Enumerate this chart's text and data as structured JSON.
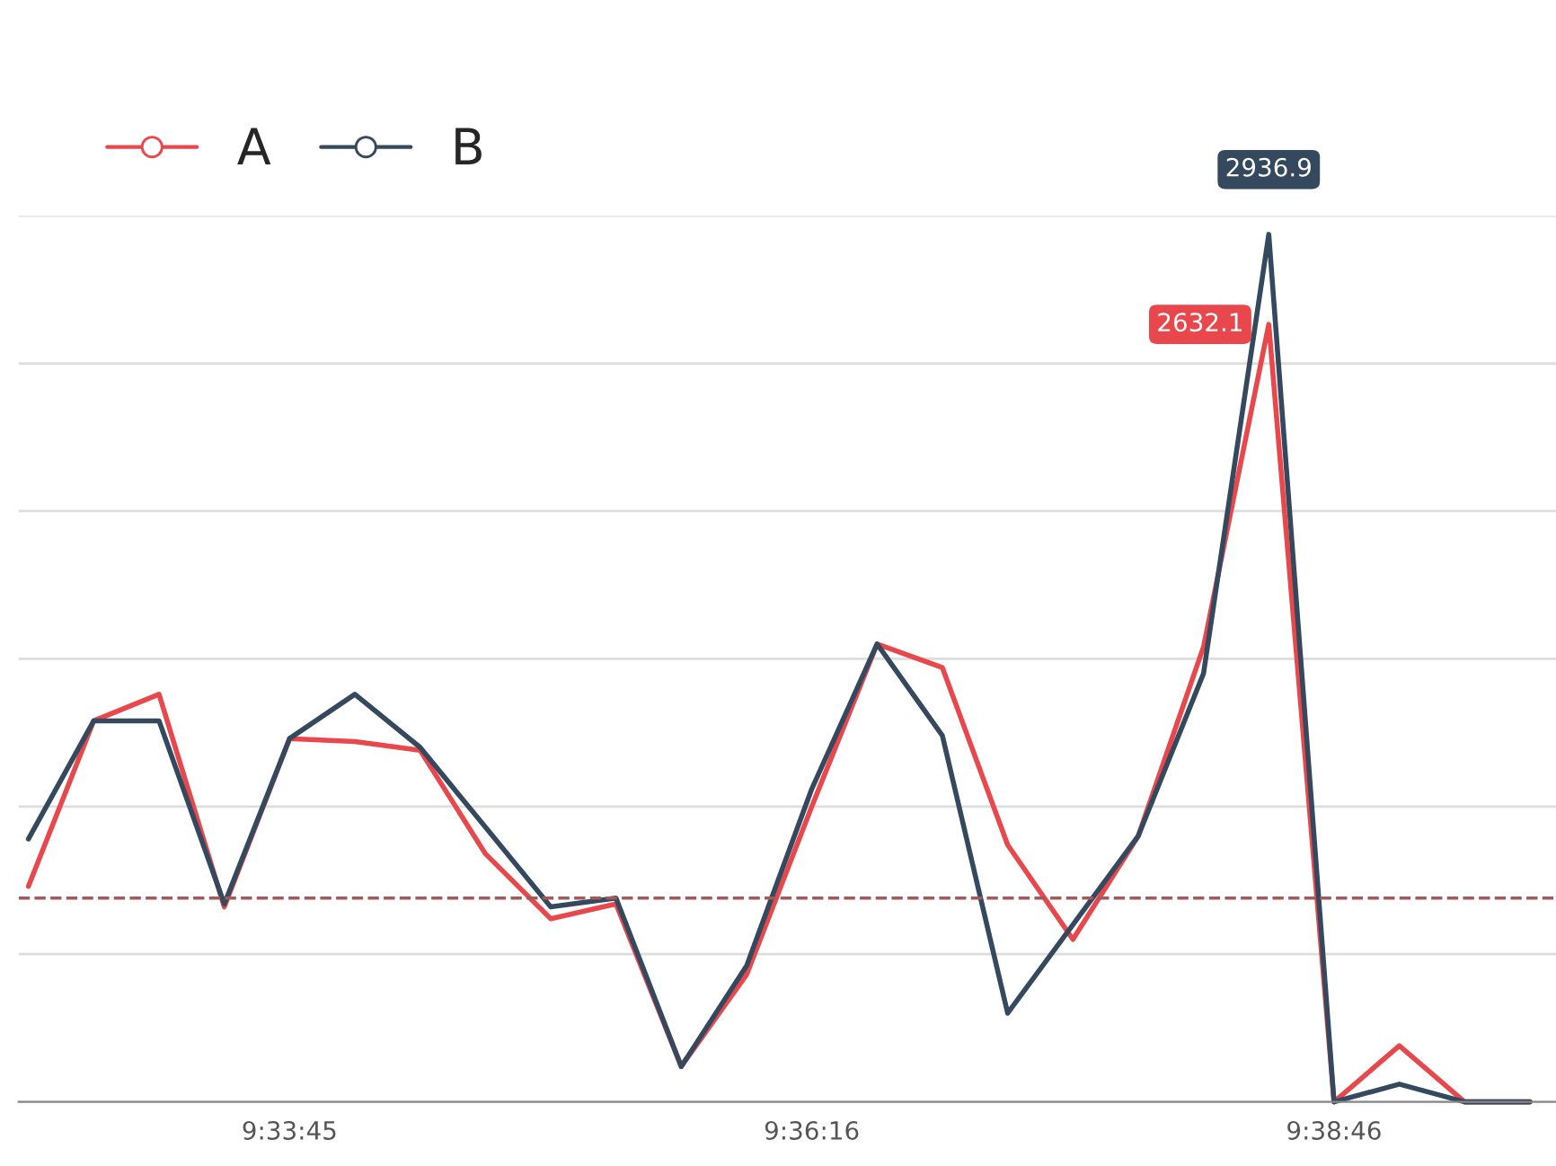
{
  "chart_data": {
    "type": "line",
    "categories": [
      null,
      null,
      null,
      null,
      "9:33:45",
      null,
      null,
      null,
      null,
      null,
      null,
      null,
      "9:36:16",
      null,
      null,
      null,
      null,
      null,
      null,
      null,
      "9:38:46",
      null,
      null,
      null
    ],
    "series": [
      {
        "name": "A",
        "color": "#e8474c",
        "values": [
          730,
          1290,
          1380,
          660,
          1230,
          1220,
          1190,
          840,
          620,
          670,
          120,
          430,
          1000,
          1550,
          1470,
          870,
          550,
          900,
          1540,
          2632.1,
          0,
          190,
          0,
          0
        ],
        "value_labels": [
          null,
          null,
          null,
          null,
          null,
          null,
          null,
          null,
          null,
          null,
          null,
          null,
          null,
          null,
          null,
          null,
          null,
          null,
          null,
          "2632.1",
          null,
          null,
          null,
          null
        ]
      },
      {
        "name": "B",
        "color": "#34495e",
        "values": [
          890,
          1290,
          1290,
          670,
          1230,
          1380,
          1200,
          930,
          660,
          690,
          120,
          460,
          1060,
          1550,
          1240,
          300,
          600,
          900,
          1450,
          2936.9,
          0,
          60,
          0,
          0
        ],
        "value_labels": [
          null,
          null,
          null,
          null,
          null,
          null,
          null,
          null,
          null,
          null,
          null,
          null,
          null,
          null,
          null,
          null,
          null,
          null,
          null,
          "2936.9",
          null,
          null,
          null,
          null
        ]
      }
    ],
    "ylim": [
      0,
      3000
    ],
    "yticks": [
      {
        "value": 0,
        "label": null
      },
      {
        "value": 500,
        "label": null
      },
      {
        "value": 1000,
        "label": null
      },
      {
        "value": 1500,
        "label": null
      },
      {
        "value": 2000,
        "label": null
      },
      {
        "value": 2500,
        "label": null
      },
      {
        "value": 3000,
        "label": null
      }
    ],
    "tick_labels": "x",
    "grid": "y",
    "legend": "top left",
    "marker": "none",
    "line_style": "solid",
    "ref_lines": [
      {
        "axis": "y",
        "value": 690,
        "color": "#a05a5a",
        "line_style": "dashed"
      }
    ]
  }
}
